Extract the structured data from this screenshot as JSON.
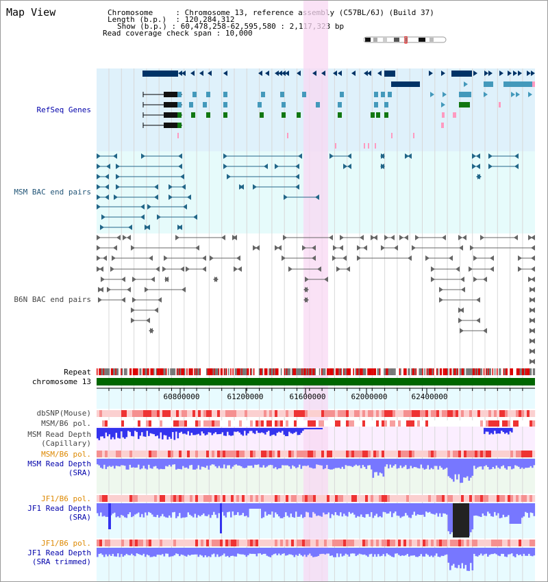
{
  "title": "Map View",
  "info": {
    "chromosome_label": "Chromosome",
    "chromosome_value": "Chromosome 13, reference assembly (C57BL/6J) (Build 37)",
    "length_label": "Length (b.p.)",
    "length_value": "120,284,312",
    "show_label": "Show (b.p.)",
    "show_value": "60,478,258-62,595,580 : 2,117,323 bp",
    "coverage_label": "Read coverage check span",
    "coverage_value": "10,000"
  },
  "tracks": {
    "refseq": "RefSeq Genes",
    "msm_bac": "MSM BAC end pairs",
    "b6n_bac": "B6N BAC end pairs",
    "repeat": "Repeat",
    "chromosome": "chromosome 13",
    "dbsnp": "dbSNP(Mouse)",
    "msm_b6_pol_1": "MSM/B6 pol.",
    "msm_depth_cap_1": "MSM Read Depth",
    "msm_depth_cap_2": "(Capillary)",
    "msm_b6_pol_2": "MSM/B6 pol.",
    "msm_depth_sra_1": "MSM Read Depth",
    "msm_depth_sra_2": "(SRA)",
    "jf1_b6_pol_1": "JF1/B6 pol.",
    "jf1_depth_sra_1": "JF1 Read Depth",
    "jf1_depth_sra_2": "(SRA)",
    "jf1_b6_pol_2": "JF1/B6 pol.",
    "jf1_depth_trim_1": "JF1 Read Depth",
    "jf1_depth_trim_2": "(SRA trimmed)"
  },
  "axis": {
    "ticks": [
      "60800000",
      "61200000",
      "61600000",
      "62000000",
      "62400000"
    ]
  },
  "colors": {
    "refseq_bg": "#dff1fb",
    "msm_bg": "#e6fbfb",
    "highlight": "#f8d8f3",
    "chromosome_bar": "#006600",
    "repeat_red": "#dd0000",
    "gene_navy": "#003366",
    "gene_blue": "#4499bb",
    "gene_green": "#117711",
    "bac_teal": "#226688",
    "depth_blue": "#3333ee",
    "depth_light": "#7777ff"
  }
}
